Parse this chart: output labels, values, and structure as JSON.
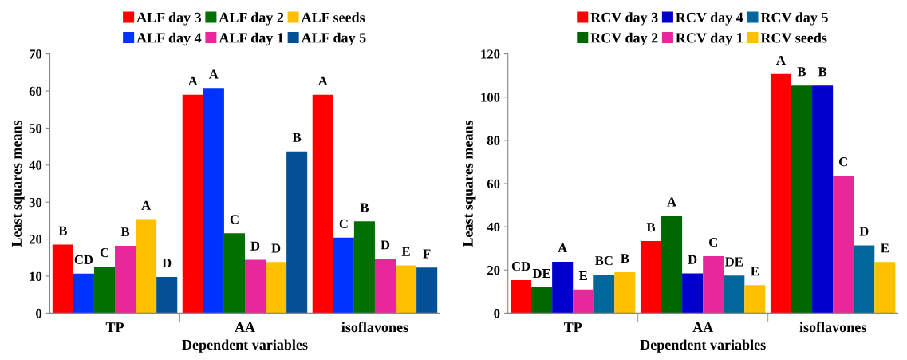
{
  "chart_data": [
    {
      "type": "bar",
      "xlabel": "Dependent variables",
      "ylabel": "Least squares means",
      "categories": [
        "TP",
        "AA",
        "isoflavones"
      ],
      "ylim": [
        0,
        70
      ],
      "yticks": [
        0,
        10,
        20,
        30,
        40,
        50,
        60,
        70
      ],
      "grid": false,
      "legend": "top",
      "series": [
        {
          "name": "ALF day 3",
          "color": "#ff0000",
          "values": [
            18.5,
            59,
            59
          ],
          "value_labels": [
            "B",
            "A",
            "A"
          ]
        },
        {
          "name": "ALF day 4",
          "color": "#0033ff",
          "values": [
            10.7,
            60.8,
            20.4
          ],
          "value_labels": [
            "CD",
            "A",
            "C"
          ]
        },
        {
          "name": "ALF day 2",
          "color": "#007000",
          "values": [
            12.6,
            21.6,
            24.8
          ],
          "value_labels": [
            "C",
            "C",
            "B"
          ]
        },
        {
          "name": "ALF day 1",
          "color": "#e8289a",
          "values": [
            18.2,
            14.4,
            14.7
          ],
          "value_labels": [
            "B",
            "D",
            "D"
          ]
        },
        {
          "name": "ALF seeds",
          "color": "#ffc000",
          "values": [
            25.4,
            13.8,
            12.9
          ],
          "value_labels": [
            "A",
            "D",
            "E"
          ]
        },
        {
          "name": "ALF day 5",
          "color": "#035096",
          "values": [
            9.8,
            43.7,
            12.3
          ],
          "value_labels": [
            "D",
            "B",
            "F"
          ]
        }
      ]
    },
    {
      "type": "bar",
      "xlabel": "Dependent variables",
      "ylabel": "Least squares means",
      "categories": [
        "TP",
        "AA",
        "isoflavones"
      ],
      "ylim": [
        0,
        120
      ],
      "yticks": [
        0,
        20,
        40,
        60,
        80,
        100,
        120
      ],
      "grid": false,
      "legend": "top",
      "series": [
        {
          "name": "RCV day 3",
          "color": "#ff0000",
          "values": [
            15.3,
            33.4,
            110.7
          ],
          "value_labels": [
            "CD",
            "B",
            "A"
          ]
        },
        {
          "name": "RCV day 2",
          "color": "#006600",
          "values": [
            12.0,
            45.1,
            105.4
          ],
          "value_labels": [
            "DE",
            "A",
            "B"
          ]
        },
        {
          "name": "RCV day 4",
          "color": "#0000cc",
          "values": [
            23.8,
            18.4,
            105.4
          ],
          "value_labels": [
            "A",
            "D",
            "B"
          ]
        },
        {
          "name": "RCV day 1",
          "color": "#e8289a",
          "values": [
            10.9,
            26.4,
            63.7
          ],
          "value_labels": [
            "E",
            "C",
            "C"
          ]
        },
        {
          "name": "RCV day 5",
          "color": "#00679b",
          "values": [
            17.9,
            17.4,
            31.4
          ],
          "value_labels": [
            "BC",
            "DE",
            "D"
          ]
        },
        {
          "name": "RCV seeds",
          "color": "#ffc000",
          "values": [
            19.0,
            13.0,
            23.7
          ],
          "value_labels": [
            "B",
            "E",
            "E"
          ]
        }
      ]
    }
  ]
}
